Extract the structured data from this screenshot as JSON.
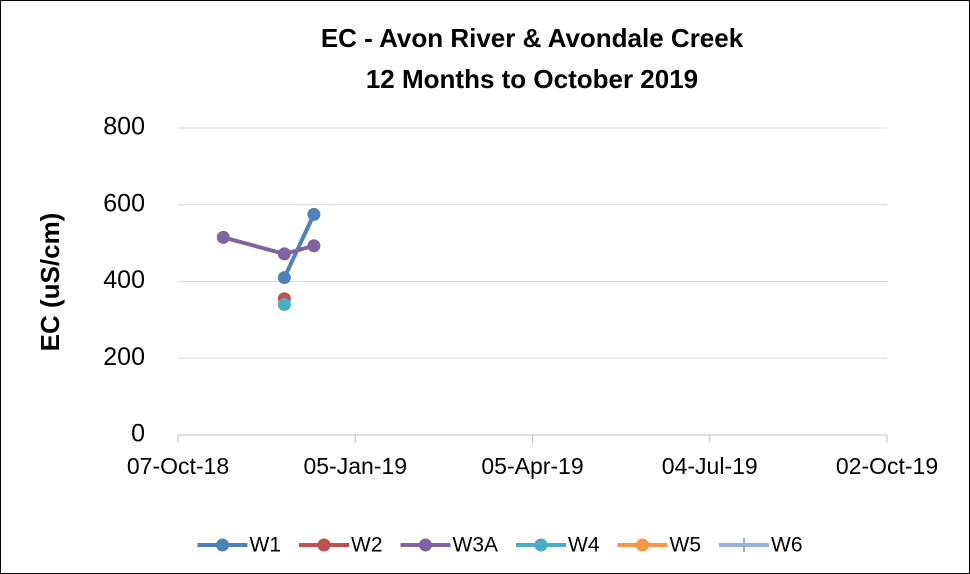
{
  "chart_data": {
    "type": "line",
    "title": "EC - Avon River & Avondale Creek",
    "subtitle": "12 Months to October 2019",
    "y_label": "EC (uS/cm)",
    "x": [
      "2018-10-30",
      "2018-11-30",
      "2018-12-15"
    ],
    "xlim": [
      "2018-10-07",
      "2019-10-02"
    ],
    "xticks": [
      {
        "value": "2018-10-07",
        "label": "07-Oct-18"
      },
      {
        "value": "2019-01-05",
        "label": "05-Jan-19"
      },
      {
        "value": "2019-04-05",
        "label": "05-Apr-19"
      },
      {
        "value": "2019-07-04",
        "label": "04-Jul-19"
      },
      {
        "value": "2019-10-02",
        "label": "02-Oct-19"
      }
    ],
    "ylim": [
      0,
      800
    ],
    "yticks": [
      0,
      200,
      400,
      600,
      800
    ],
    "grid": true,
    "legend": "bottom",
    "series": [
      {
        "name": "W1",
        "color": "#4f81bd",
        "marker": "circle",
        "values": [
          null,
          410,
          575
        ]
      },
      {
        "name": "W2",
        "color": "#c0504d",
        "marker": "circle",
        "values": [
          null,
          355,
          null
        ]
      },
      {
        "name": "W3A",
        "color": "#8064a2",
        "marker": "circle",
        "values": [
          515,
          472,
          493
        ]
      },
      {
        "name": "W4",
        "color": "#4bacc6",
        "marker": "circle",
        "values": [
          null,
          340,
          null
        ]
      },
      {
        "name": "W5",
        "color": "#f79646",
        "marker": "circle",
        "values": [
          null,
          null,
          null
        ]
      },
      {
        "name": "W6",
        "color": "#95b3d7",
        "marker": "plus",
        "values": [
          null,
          null,
          null
        ]
      }
    ]
  }
}
